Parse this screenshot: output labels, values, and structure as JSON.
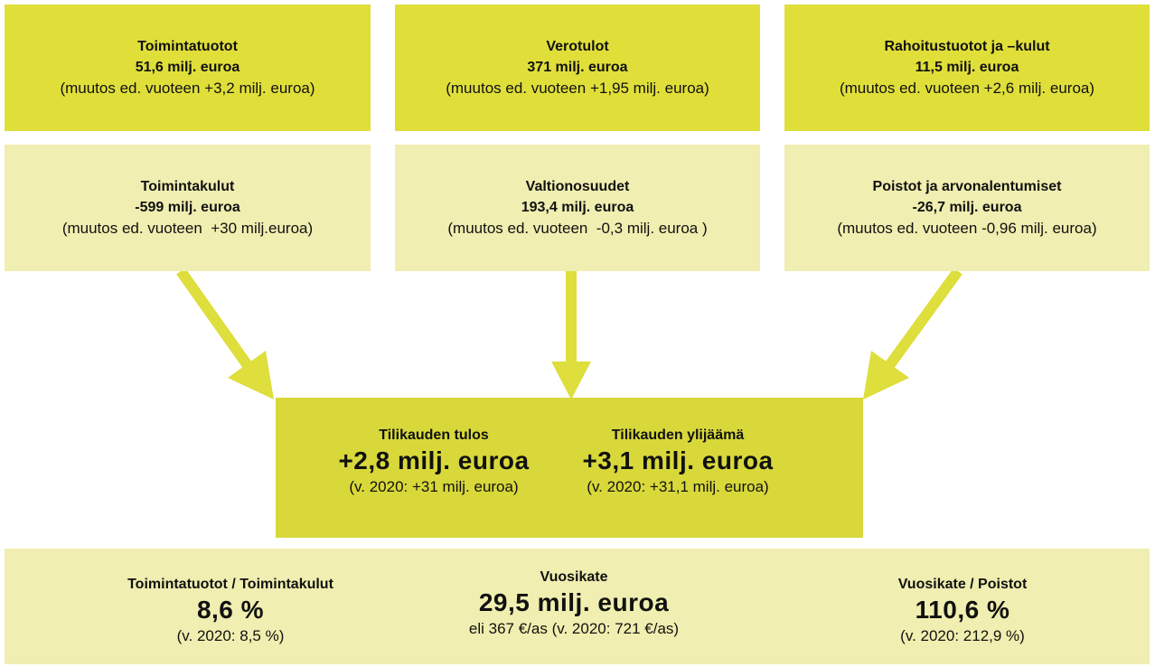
{
  "income": [
    {
      "title": "Toimintatuotot",
      "value": "51,6 milj. euroa",
      "change": "(muutos ed. vuoteen +3,2 milj. euroa)"
    },
    {
      "title": "Verotulot",
      "value": "371 milj. euroa",
      "change": "(muutos ed. vuoteen +1,95 milj. euroa)"
    },
    {
      "title": "Rahoitustuotot ja –kulut",
      "value": "11,5 milj. euroa",
      "change": "(muutos ed. vuoteen +2,6 milj. euroa)"
    }
  ],
  "costs": [
    {
      "title": "Toimintakulut",
      "value": "-599 milj. euroa",
      "change": "(muutos ed. vuoteen  +30 milj.euroa)"
    },
    {
      "title": "Valtionosuudet",
      "value": "193,4 milj. euroa",
      "change": "(muutos ed. vuoteen  -0,3 milj. euroa )"
    },
    {
      "title": "Poistot ja arvonalentumiset",
      "value": "-26,7 milj. euroa",
      "change": "(muutos ed. vuoteen -0,96 milj. euroa)"
    }
  ],
  "result": [
    {
      "title": "Tilikauden tulos",
      "value": "+2,8 milj. euroa",
      "previous": "(v. 2020: +31 milj. euroa)"
    },
    {
      "title": "Tilikauden ylijäämä",
      "value": "+3,1 milj. euroa",
      "previous": "(v. 2020: +31,1 milj. euroa)"
    }
  ],
  "indicators": [
    {
      "title": "Toimintatuotot / Toimintakulut",
      "value": "8,6 %",
      "note": "(v. 2020: 8,5 %)"
    },
    {
      "title": "Vuosikate",
      "value": "29,5 milj. euroa",
      "note": "eli 367 €/as (v. 2020: 721 €/as)"
    },
    {
      "title": "Vuosikate / Poistot",
      "value": "110,6 %",
      "note": "(v. 2020: 212,9 %)"
    }
  ]
}
